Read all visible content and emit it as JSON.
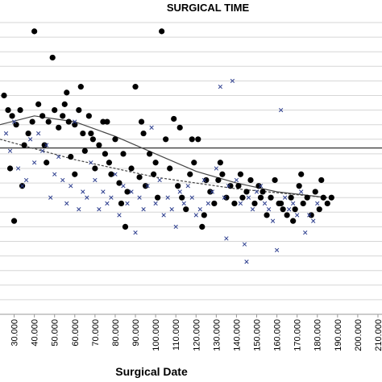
{
  "chart_data": {
    "type": "scatter",
    "title": "SURGICAL TIME",
    "xlabel": "Surgical Date",
    "ylabel": "",
    "xlim": [
      23000,
      212000
    ],
    "ylim": [
      0,
      100
    ],
    "x_ticks": [
      "30.000",
      "40.000",
      "50.000",
      "60.000",
      "70.000",
      "80.000",
      "90.000",
      "100.000",
      "110.000",
      "120.000",
      "130.000",
      "140.000",
      "150.000",
      "160.000",
      "170.000",
      "180.000",
      "190.000",
      "200.000",
      "210.000"
    ],
    "x_tick_values": [
      30000,
      40000,
      50000,
      60000,
      70000,
      80000,
      90000,
      100000,
      110000,
      120000,
      130000,
      140000,
      150000,
      160000,
      170000,
      180000,
      190000,
      200000,
      210000
    ],
    "gridlines_y": [
      0,
      5,
      10,
      15,
      20,
      25,
      30,
      35,
      40,
      45,
      50,
      55,
      60,
      65,
      70,
      75,
      80,
      85,
      90,
      95,
      100
    ],
    "grid": true,
    "series": [
      {
        "marker": "circle",
        "color": "#000000",
        "points": [
          [
            25000,
            75
          ],
          [
            27000,
            70
          ],
          [
            29000,
            68
          ],
          [
            31000,
            65
          ],
          [
            33000,
            70
          ],
          [
            35000,
            58
          ],
          [
            37000,
            62
          ],
          [
            39000,
            66
          ],
          [
            40000,
            97
          ],
          [
            42000,
            72
          ],
          [
            44000,
            68
          ],
          [
            45000,
            58
          ],
          [
            47000,
            66
          ],
          [
            49000,
            88
          ],
          [
            50000,
            70
          ],
          [
            52000,
            64
          ],
          [
            54000,
            68
          ],
          [
            55000,
            72
          ],
          [
            57000,
            66
          ],
          [
            58000,
            54
          ],
          [
            60000,
            65
          ],
          [
            62000,
            70
          ],
          [
            64000,
            62
          ],
          [
            65000,
            56
          ],
          [
            67000,
            68
          ],
          [
            69000,
            60
          ],
          [
            70000,
            50
          ],
          [
            72000,
            58
          ],
          [
            74000,
            66
          ],
          [
            75000,
            55
          ],
          [
            77000,
            52
          ],
          [
            78000,
            48
          ],
          [
            80000,
            60
          ],
          [
            82000,
            45
          ],
          [
            84000,
            55
          ],
          [
            86000,
            42
          ],
          [
            88000,
            50
          ],
          [
            90000,
            78
          ],
          [
            92000,
            47
          ],
          [
            94000,
            62
          ],
          [
            95000,
            44
          ],
          [
            97000,
            55
          ],
          [
            99000,
            48
          ],
          [
            101000,
            40
          ],
          [
            103000,
            97
          ],
          [
            105000,
            60
          ],
          [
            107000,
            50
          ],
          [
            109000,
            67
          ],
          [
            111000,
            44
          ],
          [
            113000,
            40
          ],
          [
            115000,
            36
          ],
          [
            117000,
            48
          ],
          [
            119000,
            52
          ],
          [
            121000,
            60
          ],
          [
            123000,
            30
          ],
          [
            125000,
            46
          ],
          [
            127000,
            42
          ],
          [
            129000,
            38
          ],
          [
            131000,
            46
          ],
          [
            133000,
            48
          ],
          [
            135000,
            40
          ],
          [
            137000,
            44
          ],
          [
            139000,
            38
          ],
          [
            141000,
            44
          ],
          [
            143000,
            40
          ],
          [
            145000,
            42
          ],
          [
            147000,
            46
          ],
          [
            149000,
            38
          ],
          [
            151000,
            44
          ],
          [
            153000,
            42
          ],
          [
            155000,
            34
          ],
          [
            157000,
            40
          ],
          [
            159000,
            46
          ],
          [
            161000,
            38
          ],
          [
            163000,
            36
          ],
          [
            165000,
            34
          ],
          [
            167000,
            40
          ],
          [
            169000,
            36
          ],
          [
            171000,
            44
          ],
          [
            173000,
            38
          ],
          [
            175000,
            40
          ],
          [
            177000,
            34
          ],
          [
            179000,
            42
          ],
          [
            181000,
            36
          ],
          [
            183000,
            40
          ],
          [
            185000,
            38
          ],
          [
            187000,
            40
          ],
          [
            28000,
            50
          ],
          [
            34000,
            44
          ],
          [
            46000,
            52
          ],
          [
            56000,
            76
          ],
          [
            63000,
            78
          ],
          [
            68000,
            62
          ],
          [
            76000,
            66
          ],
          [
            83000,
            38
          ],
          [
            93000,
            66
          ],
          [
            100000,
            52
          ],
          [
            112000,
            64
          ],
          [
            118000,
            60
          ],
          [
            132000,
            52
          ],
          [
            142000,
            48
          ],
          [
            152000,
            40
          ],
          [
            162000,
            38
          ],
          [
            172000,
            48
          ],
          [
            182000,
            46
          ],
          [
            30000,
            32
          ],
          [
            60000,
            48
          ],
          [
            85000,
            30
          ],
          [
            124000,
            34
          ],
          [
            168000,
            32
          ]
        ]
      },
      {
        "marker": "x",
        "color": "#2e3f8f",
        "points": [
          [
            26000,
            62
          ],
          [
            28000,
            56
          ],
          [
            30000,
            66
          ],
          [
            32000,
            50
          ],
          [
            34000,
            44
          ],
          [
            36000,
            46
          ],
          [
            38000,
            60
          ],
          [
            40000,
            52
          ],
          [
            42000,
            62
          ],
          [
            44000,
            56
          ],
          [
            46000,
            58
          ],
          [
            48000,
            40
          ],
          [
            50000,
            48
          ],
          [
            52000,
            54
          ],
          [
            54000,
            46
          ],
          [
            56000,
            38
          ],
          [
            58000,
            44
          ],
          [
            60000,
            66
          ],
          [
            62000,
            36
          ],
          [
            64000,
            42
          ],
          [
            66000,
            40
          ],
          [
            68000,
            52
          ],
          [
            70000,
            46
          ],
          [
            72000,
            36
          ],
          [
            74000,
            42
          ],
          [
            76000,
            38
          ],
          [
            78000,
            40
          ],
          [
            80000,
            48
          ],
          [
            82000,
            34
          ],
          [
            84000,
            44
          ],
          [
            86000,
            38
          ],
          [
            88000,
            42
          ],
          [
            90000,
            28
          ],
          [
            92000,
            40
          ],
          [
            94000,
            36
          ],
          [
            96000,
            44
          ],
          [
            98000,
            64
          ],
          [
            100000,
            38
          ],
          [
            102000,
            46
          ],
          [
            104000,
            34
          ],
          [
            106000,
            40
          ],
          [
            108000,
            36
          ],
          [
            110000,
            30
          ],
          [
            112000,
            42
          ],
          [
            114000,
            38
          ],
          [
            116000,
            44
          ],
          [
            118000,
            40
          ],
          [
            120000,
            34
          ],
          [
            122000,
            36
          ],
          [
            124000,
            46
          ],
          [
            126000,
            38
          ],
          [
            128000,
            42
          ],
          [
            130000,
            50
          ],
          [
            132000,
            78
          ],
          [
            134000,
            40
          ],
          [
            136000,
            44
          ],
          [
            138000,
            80
          ],
          [
            140000,
            46
          ],
          [
            142000,
            38
          ],
          [
            144000,
            24
          ],
          [
            146000,
            40
          ],
          [
            148000,
            36
          ],
          [
            150000,
            42
          ],
          [
            152000,
            44
          ],
          [
            154000,
            38
          ],
          [
            156000,
            36
          ],
          [
            158000,
            32
          ],
          [
            160000,
            22
          ],
          [
            162000,
            70
          ],
          [
            164000,
            40
          ],
          [
            166000,
            36
          ],
          [
            168000,
            38
          ],
          [
            170000,
            34
          ],
          [
            172000,
            42
          ],
          [
            174000,
            28
          ],
          [
            176000,
            34
          ],
          [
            178000,
            32
          ],
          [
            180000,
            38
          ],
          [
            145000,
            18
          ],
          [
            135000,
            26
          ]
        ]
      }
    ],
    "trend_lines": [
      {
        "style": "solid",
        "color": "#444444",
        "points": [
          [
            23000,
            65
          ],
          [
            40000,
            68
          ],
          [
            60000,
            66
          ],
          [
            80000,
            61
          ],
          [
            100000,
            55
          ],
          [
            120000,
            49
          ],
          [
            140000,
            45
          ],
          [
            160000,
            42
          ],
          [
            185000,
            40
          ]
        ]
      },
      {
        "style": "dashed",
        "color": "#444444",
        "points": [
          [
            23000,
            60
          ],
          [
            60000,
            53
          ],
          [
            100000,
            47
          ],
          [
            140000,
            43
          ],
          [
            185000,
            40
          ]
        ]
      }
    ],
    "reference_line": {
      "style": "solid",
      "color": "#333333",
      "y": 57
    }
  }
}
